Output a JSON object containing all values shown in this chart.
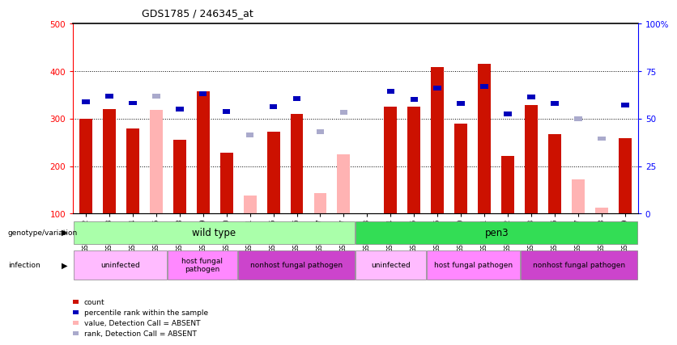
{
  "title": "GDS1785 / 246345_at",
  "samples": [
    "GSM71002",
    "GSM71003",
    "GSM71004",
    "GSM71005",
    "GSM70998",
    "GSM70999",
    "GSM71000",
    "GSM71001",
    "GSM70995",
    "GSM70996",
    "GSM70997",
    "GSM71017",
    "GSM71013",
    "GSM71014",
    "GSM71015",
    "GSM71016",
    "GSM71010",
    "GSM71011",
    "GSM71012",
    "GSM71018",
    "GSM71006",
    "GSM71007",
    "GSM71008",
    "GSM71009"
  ],
  "count_present": [
    300,
    320,
    280,
    null,
    255,
    358,
    228,
    null,
    273,
    310,
    null,
    null,
    null,
    325,
    325,
    408,
    290,
    415,
    222,
    328,
    268,
    null,
    null,
    258
  ],
  "count_absent": [
    null,
    null,
    null,
    318,
    null,
    null,
    null,
    138,
    null,
    null,
    143,
    225,
    null,
    null,
    null,
    null,
    null,
    null,
    null,
    null,
    null,
    172,
    112,
    null
  ],
  "rank_present": [
    335,
    347,
    333,
    null,
    320,
    353,
    315,
    null,
    325,
    343,
    null,
    null,
    null,
    358,
    340,
    365,
    332,
    368,
    310,
    346,
    332,
    null,
    null,
    328
  ],
  "rank_absent": [
    null,
    null,
    null,
    347,
    null,
    null,
    null,
    265,
    null,
    null,
    273,
    313,
    null,
    null,
    null,
    null,
    null,
    null,
    null,
    null,
    null,
    300,
    258,
    null
  ],
  "ylim_left": [
    100,
    500
  ],
  "ylim_right": [
    0,
    100
  ],
  "yticks_left": [
    100,
    200,
    300,
    400,
    500
  ],
  "yticks_right": [
    0,
    25,
    50,
    75,
    100
  ],
  "yticklabels_right": [
    "0",
    "25",
    "50",
    "75",
    "100%"
  ],
  "grid_values": [
    200,
    300,
    400
  ],
  "bar_color_present": "#cc1100",
  "bar_color_absent": "#ffb3b3",
  "rank_color_present": "#0000bb",
  "rank_color_absent": "#aaaacc",
  "groups": [
    {
      "label": "wild type",
      "start": 0,
      "end": 12,
      "color": "#aaffaa"
    },
    {
      "label": "pen3",
      "start": 12,
      "end": 24,
      "color": "#33dd55"
    }
  ],
  "infections": [
    {
      "label": "uninfected",
      "start": 0,
      "end": 4,
      "color": "#ffbbff"
    },
    {
      "label": "host fungal\npathogen",
      "start": 4,
      "end": 7,
      "color": "#ff88ff"
    },
    {
      "label": "nonhost fungal pathogen",
      "start": 7,
      "end": 12,
      "color": "#cc44cc"
    },
    {
      "label": "uninfected",
      "start": 12,
      "end": 15,
      "color": "#ffbbff"
    },
    {
      "label": "host fungal pathogen",
      "start": 15,
      "end": 19,
      "color": "#ff88ff"
    },
    {
      "label": "nonhost fungal pathogen",
      "start": 19,
      "end": 24,
      "color": "#cc44cc"
    }
  ],
  "legend_items": [
    {
      "label": "count",
      "color": "#cc1100"
    },
    {
      "label": "percentile rank within the sample",
      "color": "#0000bb"
    },
    {
      "label": "value, Detection Call = ABSENT",
      "color": "#ffb3b3"
    },
    {
      "label": "rank, Detection Call = ABSENT",
      "color": "#aaaacc"
    }
  ]
}
